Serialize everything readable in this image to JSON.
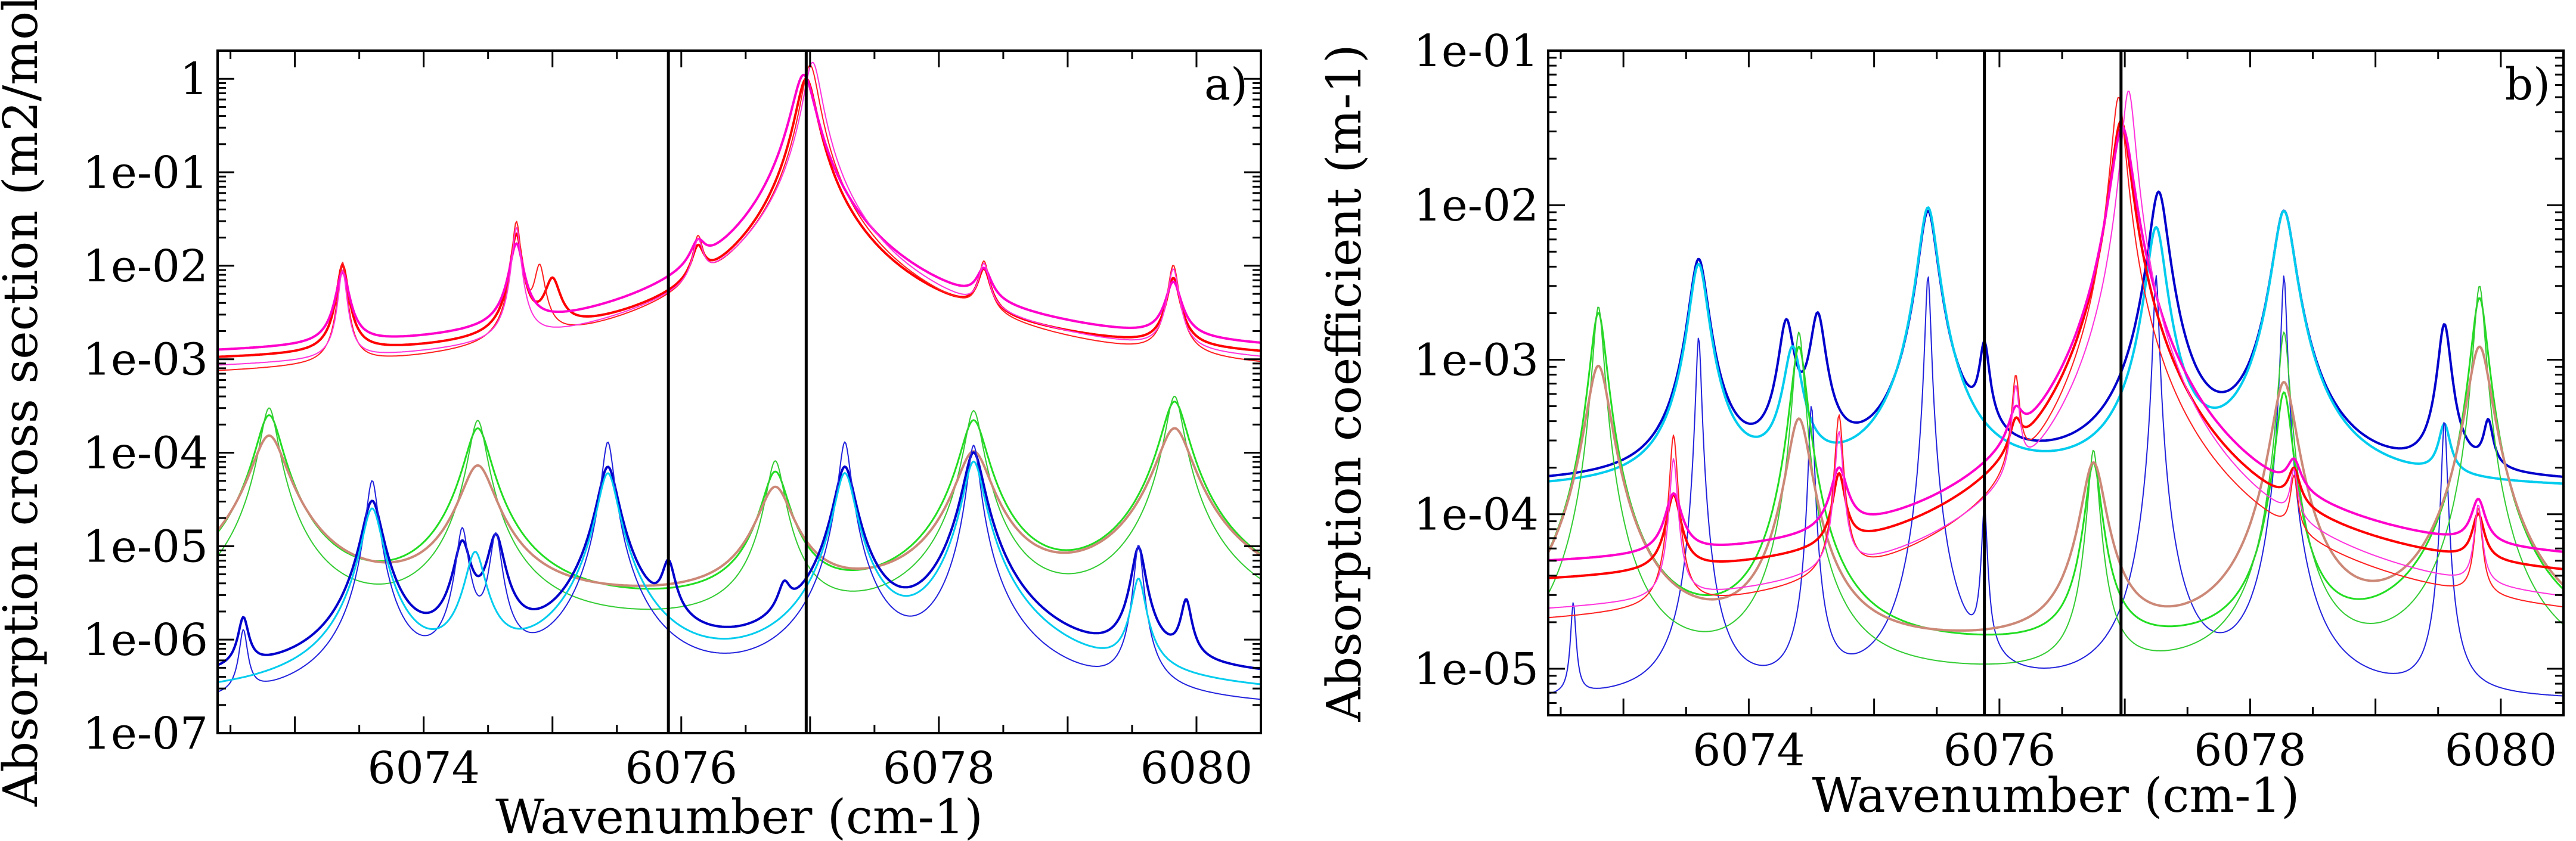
{
  "figure": {
    "panels": [
      "a",
      "b"
    ]
  },
  "chart_data": [
    {
      "type": "line",
      "panel_label": "a)",
      "xlabel": "Wavenumber (cm-1)",
      "ylabel": "Absorption cross section (m2/mol)",
      "yscale": "log",
      "xlim": [
        6072.4,
        6080.5
      ],
      "ylim": [
        1e-07,
        2
      ],
      "x_ticks": [
        6074,
        6076,
        6078,
        6080
      ],
      "x_tick_labels": [
        "6074",
        "6076",
        "6078",
        "6080"
      ],
      "y_ticks": [
        1,
        0.1,
        0.01,
        0.001,
        0.0001,
        1e-05,
        1e-06,
        1e-07
      ],
      "y_tick_labels": [
        "1",
        "1e-01",
        "1e-02",
        "1e-03",
        "1e-04",
        "1e-05",
        "1e-06",
        "1e-07"
      ],
      "vlines": [
        6075.9,
        6076.97
      ],
      "series": [
        {
          "name": "red",
          "color": "#ff0000",
          "width": 4,
          "base": 0.0008,
          "peaks": [
            [
              6073.37,
              0.009,
              0.04
            ],
            [
              6074.72,
              0.02,
              0.04
            ],
            [
              6076.13,
              0.009,
              0.05
            ],
            [
              6076.97,
              1.0,
              0.07
            ],
            [
              6078.35,
              0.006,
              0.05
            ],
            [
              6079.82,
              0.006,
              0.05
            ],
            [
              6075.0,
              0.005,
              0.06
            ]
          ]
        },
        {
          "name": "red-thin",
          "color": "#ff2020",
          "width": 2,
          "base": 0.0005,
          "peaks": [
            [
              6073.37,
              0.01,
              0.03
            ],
            [
              6074.72,
              0.028,
              0.03
            ],
            [
              6076.13,
              0.014,
              0.04
            ],
            [
              6077.0,
              1.4,
              0.06
            ],
            [
              6078.35,
              0.008,
              0.04
            ],
            [
              6079.82,
              0.009,
              0.04
            ],
            [
              6074.9,
              0.008,
              0.04
            ]
          ]
        },
        {
          "name": "magenta",
          "color": "#ff00cc",
          "width": 4,
          "base": 0.0009,
          "peaks": [
            [
              6073.37,
              0.007,
              0.05
            ],
            [
              6074.72,
              0.015,
              0.05
            ],
            [
              6076.13,
              0.008,
              0.06
            ],
            [
              6076.95,
              1.1,
              0.08
            ],
            [
              6078.35,
              0.005,
              0.06
            ],
            [
              6079.82,
              0.005,
              0.06
            ]
          ]
        },
        {
          "name": "magenta-thin",
          "color": "#ff33dd",
          "width": 2,
          "base": 0.0006,
          "peaks": [
            [
              6073.37,
              0.008,
              0.03
            ],
            [
              6074.72,
              0.024,
              0.03
            ],
            [
              6076.13,
              0.012,
              0.04
            ],
            [
              6077.02,
              1.5,
              0.06
            ],
            [
              6078.35,
              0.007,
              0.04
            ],
            [
              6079.82,
              0.008,
              0.04
            ]
          ]
        },
        {
          "name": "green",
          "color": "#22dd22",
          "width": 3,
          "base": 1.5e-06,
          "peaks": [
            [
              6072.8,
              0.00025,
              0.09
            ],
            [
              6074.42,
              0.00018,
              0.09
            ],
            [
              6076.73,
              6e-05,
              0.09
            ],
            [
              6078.27,
              0.00022,
              0.09
            ],
            [
              6079.83,
              0.00035,
              0.09
            ]
          ]
        },
        {
          "name": "green-thin",
          "color": "#33cc33",
          "width": 2,
          "base": 1e-06,
          "peaks": [
            [
              6072.8,
              0.0003,
              0.06
            ],
            [
              6074.42,
              0.00022,
              0.06
            ],
            [
              6076.73,
              8e-05,
              0.06
            ],
            [
              6078.27,
              0.00028,
              0.06
            ],
            [
              6079.83,
              0.0004,
              0.06
            ]
          ]
        },
        {
          "name": "rosybrown",
          "color": "#cc8877",
          "width": 4,
          "base": 2e-06,
          "peaks": [
            [
              6072.8,
              0.00015,
              0.12
            ],
            [
              6074.42,
              7e-05,
              0.12
            ],
            [
              6076.73,
              4e-05,
              0.12
            ],
            [
              6078.27,
              0.0001,
              0.12
            ],
            [
              6079.83,
              0.00018,
              0.12
            ]
          ]
        },
        {
          "name": "blue",
          "color": "#0000cc",
          "width": 4,
          "base": 3e-07,
          "peaks": [
            [
              6072.6,
              1.2e-06,
              0.04
            ],
            [
              6073.6,
              3e-05,
              0.07
            ],
            [
              6074.3,
              1e-05,
              0.06
            ],
            [
              6074.56,
              1.2e-05,
              0.06
            ],
            [
              6075.43,
              7e-05,
              0.07
            ],
            [
              6075.9,
              5e-06,
              0.05
            ],
            [
              6076.8,
              2e-06,
              0.05
            ],
            [
              6077.27,
              7e-05,
              0.07
            ],
            [
              6078.27,
              0.0001,
              0.07
            ],
            [
              6079.55,
              9e-06,
              0.05
            ],
            [
              6079.92,
              2e-06,
              0.04
            ]
          ]
        },
        {
          "name": "blue-thin",
          "color": "#2222dd",
          "width": 2,
          "base": 1.5e-07,
          "peaks": [
            [
              6072.6,
              1e-06,
              0.03
            ],
            [
              6073.6,
              5e-05,
              0.04
            ],
            [
              6074.3,
              1.5e-05,
              0.04
            ],
            [
              6074.56,
              1.3e-05,
              0.04
            ],
            [
              6075.43,
              0.00013,
              0.04
            ],
            [
              6077.27,
              0.00013,
              0.04
            ],
            [
              6078.27,
              0.00012,
              0.04
            ],
            [
              6079.55,
              1e-05,
              0.03
            ]
          ]
        },
        {
          "name": "cyan",
          "color": "#00ccee",
          "width": 3,
          "base": 2e-07,
          "peaks": [
            [
              6073.6,
              2.5e-05,
              0.07
            ],
            [
              6074.4,
              8e-06,
              0.07
            ],
            [
              6075.43,
              6e-05,
              0.07
            ],
            [
              6077.27,
              6e-05,
              0.07
            ],
            [
              6078.27,
              8e-05,
              0.07
            ],
            [
              6079.55,
              4e-06,
              0.05
            ]
          ]
        }
      ]
    },
    {
      "type": "line",
      "panel_label": "b)",
      "xlabel": "Wavenumber (cm-1)",
      "ylabel": "Absorption coefficient (m-1)",
      "yscale": "log",
      "xlim": [
        6072.4,
        6080.5
      ],
      "ylim": [
        5e-06,
        0.1
      ],
      "x_ticks": [
        6074,
        6076,
        6078,
        6080
      ],
      "x_tick_labels": [
        "6074",
        "6076",
        "6078",
        "6080"
      ],
      "y_ticks": [
        0.1,
        0.01,
        0.001,
        0.0001,
        1e-05
      ],
      "y_tick_labels": [
        "1e-01",
        "1e-02",
        "1e-03",
        "1e-04",
        "1e-05"
      ],
      "vlines": [
        6075.88,
        6076.97
      ],
      "series": [
        {
          "name": "blue",
          "color": "#0000cc",
          "width": 4,
          "base": 0.00015,
          "peaks": [
            [
              6073.6,
              0.0043,
              0.07
            ],
            [
              6074.3,
              0.0015,
              0.06
            ],
            [
              6074.55,
              0.0017,
              0.06
            ],
            [
              6075.43,
              0.009,
              0.07
            ],
            [
              6075.88,
              0.0009,
              0.04
            ],
            [
              6077.27,
              0.012,
              0.07
            ],
            [
              6078.27,
              0.009,
              0.08
            ],
            [
              6079.55,
              0.0015,
              0.05
            ],
            [
              6079.9,
              0.0002,
              0.04
            ]
          ]
        },
        {
          "name": "cyan",
          "color": "#00ccee",
          "width": 4,
          "base": 0.00014,
          "peaks": [
            [
              6073.6,
              0.004,
              0.07
            ],
            [
              6074.35,
              0.001,
              0.07
            ],
            [
              6075.43,
              0.0095,
              0.07
            ],
            [
              6077.25,
              0.007,
              0.07
            ],
            [
              6078.27,
              0.009,
              0.08
            ],
            [
              6079.55,
              0.0002,
              0.05
            ]
          ]
        },
        {
          "name": "blue-thin",
          "color": "#2222dd",
          "width": 2,
          "base": 6e-06,
          "peaks": [
            [
              6072.6,
              2e-05,
              0.02
            ],
            [
              6073.6,
              0.0014,
              0.02
            ],
            [
              6074.5,
              0.0005,
              0.02
            ],
            [
              6075.43,
              0.0035,
              0.02
            ],
            [
              6075.88,
              0.0001,
              0.02
            ],
            [
              6077.25,
              0.0035,
              0.02
            ],
            [
              6078.27,
              0.0035,
              0.02
            ],
            [
              6079.55,
              0.0004,
              0.02
            ]
          ]
        },
        {
          "name": "green",
          "color": "#22dd22",
          "width": 3,
          "base": 1.2e-05,
          "peaks": [
            [
              6072.8,
              0.002,
              0.06
            ],
            [
              6074.4,
              0.0012,
              0.06
            ],
            [
              6076.75,
              0.0002,
              0.06
            ],
            [
              6078.27,
              0.0006,
              0.06
            ],
            [
              6079.83,
              0.0025,
              0.06
            ]
          ]
        },
        {
          "name": "green-thin",
          "color": "#33cc33",
          "width": 2,
          "base": 8e-06,
          "peaks": [
            [
              6072.8,
              0.0022,
              0.04
            ],
            [
              6074.4,
              0.0015,
              0.04
            ],
            [
              6076.75,
              0.00025,
              0.04
            ],
            [
              6078.27,
              0.0015,
              0.04
            ],
            [
              6079.83,
              0.003,
              0.04
            ]
          ]
        },
        {
          "name": "rosybrown",
          "color": "#cc8877",
          "width": 4,
          "base": 1.2e-05,
          "peaks": [
            [
              6072.8,
              0.0009,
              0.09
            ],
            [
              6074.4,
              0.0004,
              0.09
            ],
            [
              6076.75,
              0.0002,
              0.09
            ],
            [
              6078.27,
              0.0007,
              0.09
            ],
            [
              6079.83,
              0.0012,
              0.09
            ]
          ]
        },
        {
          "name": "red",
          "color": "#ff0000",
          "width": 4,
          "base": 3e-05,
          "peaks": [
            [
              6073.4,
              9e-05,
              0.06
            ],
            [
              6074.72,
              0.00012,
              0.05
            ],
            [
              6076.13,
              0.00015,
              0.05
            ],
            [
              6076.97,
              0.035,
              0.07
            ],
            [
              6078.35,
              8e-05,
              0.05
            ],
            [
              6079.82,
              5e-05,
              0.05
            ]
          ]
        },
        {
          "name": "red-thin",
          "color": "#ff2020",
          "width": 2,
          "base": 1.5e-05,
          "peaks": [
            [
              6073.4,
              0.0003,
              0.03
            ],
            [
              6074.72,
              0.0004,
              0.03
            ],
            [
              6076.13,
              0.0006,
              0.03
            ],
            [
              6076.95,
              0.05,
              0.05
            ],
            [
              6078.35,
              0.0001,
              0.03
            ],
            [
              6079.82,
              8e-05,
              0.03
            ]
          ]
        },
        {
          "name": "magenta",
          "color": "#ff00cc",
          "width": 4,
          "base": 4e-05,
          "peaks": [
            [
              6073.4,
              8e-05,
              0.07
            ],
            [
              6074.72,
              0.00012,
              0.07
            ],
            [
              6076.13,
              0.00018,
              0.06
            ],
            [
              6076.98,
              0.032,
              0.08
            ],
            [
              6078.35,
              8e-05,
              0.06
            ],
            [
              6079.82,
              6e-05,
              0.06
            ]
          ]
        },
        {
          "name": "magenta-thin",
          "color": "#ff33dd",
          "width": 2,
          "base": 1.8e-05,
          "peaks": [
            [
              6073.4,
              0.0002,
              0.03
            ],
            [
              6074.72,
              0.0003,
              0.03
            ],
            [
              6076.13,
              0.0005,
              0.03
            ],
            [
              6077.03,
              0.055,
              0.05
            ],
            [
              6078.35,
              0.0001,
              0.03
            ],
            [
              6079.82,
              8e-05,
              0.03
            ]
          ]
        }
      ]
    }
  ]
}
